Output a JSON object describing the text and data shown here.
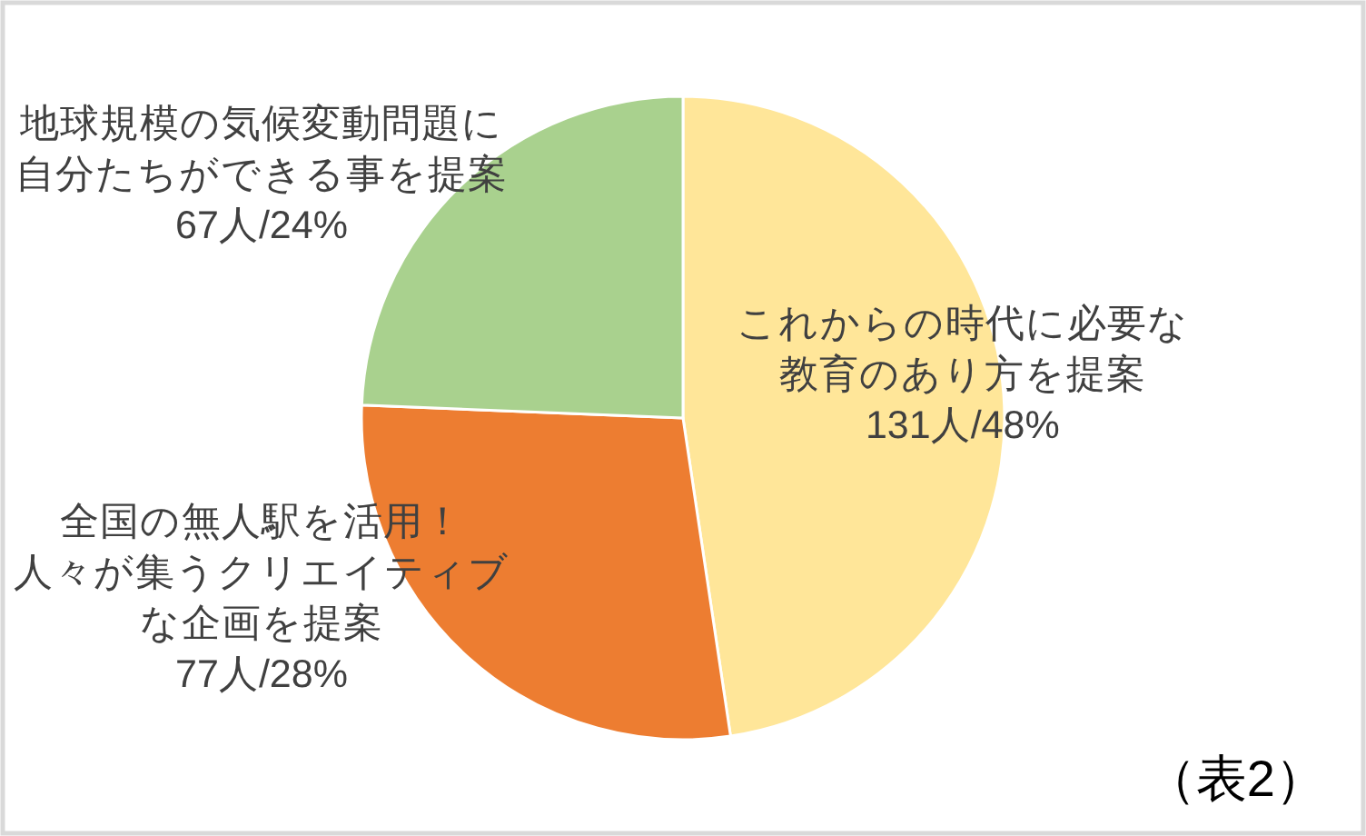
{
  "chart_data": {
    "type": "pie",
    "categories": [
      "これからの時代に必要な教育のあり方を提案",
      "全国の無人駅を活用！人々が集うクリエイティブな企画を提案",
      "地球規模の気候変動問題に自分たちができる事を提案"
    ],
    "values": [
      131,
      77,
      67
    ],
    "colors": [
      "#ffe699",
      "#ed7d31",
      "#a9d18e"
    ],
    "value_labels": [
      "131人/48%",
      "77人/28%",
      "67人/24%"
    ],
    "annotations": [
      "（表2）"
    ]
  }
}
